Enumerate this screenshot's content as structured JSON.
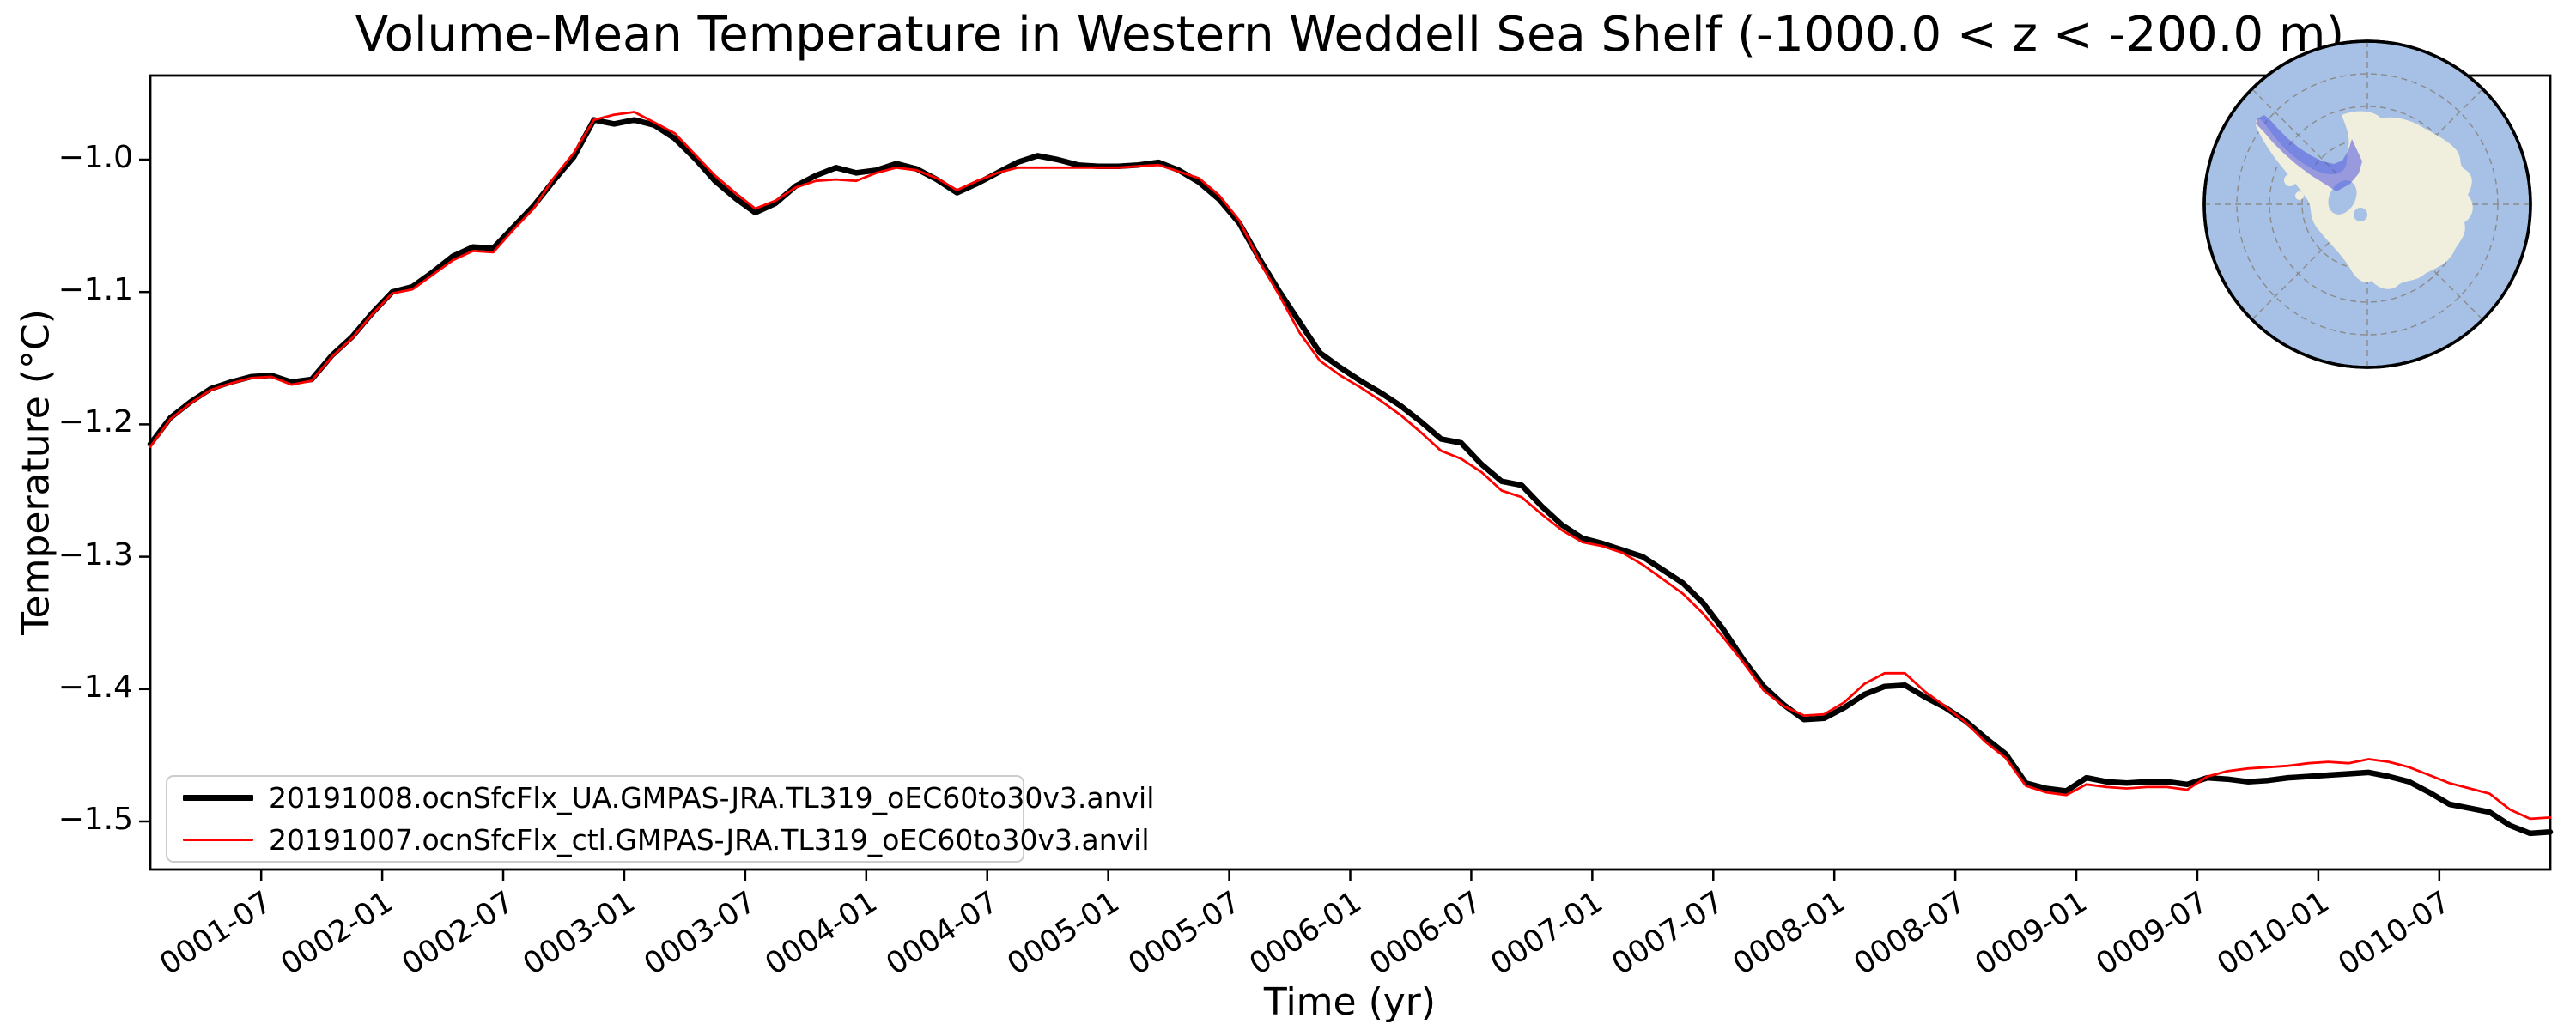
{
  "chart_data": {
    "type": "line",
    "title": "Volume-Mean Temperature in Western Weddell Sea Shelf (-1000.0 < z < -200.0 m)",
    "xlabel": "Time (yr)",
    "ylabel": "Temperature (°C)",
    "x_start": "0001-01",
    "x_end": "0010-12",
    "x_step_months": 1,
    "x_tick_labels": [
      "0001-07",
      "0002-01",
      "0002-07",
      "0003-01",
      "0003-07",
      "0004-01",
      "0004-07",
      "0005-01",
      "0005-07",
      "0006-01",
      "0006-07",
      "0007-01",
      "0007-07",
      "0008-01",
      "0008-07",
      "0009-01",
      "0009-07",
      "0010-01",
      "0010-07"
    ],
    "y_tick_labels": [
      "−1.0",
      "−1.1",
      "−1.2",
      "−1.3",
      "−1.4",
      "−1.5"
    ],
    "y_tick_values": [
      -1.0,
      -1.1,
      -1.2,
      -1.3,
      -1.4,
      -1.5
    ],
    "ylim": [
      -1.536,
      -0.936
    ],
    "grid": false,
    "legend_position": "lower left",
    "series": [
      {
        "name": "20191008.ocnSfcFlx_UA.GMPAS-JRA.TL319_oEC60to30v3.anvil",
        "color": "#000000",
        "linewidth": 6.5,
        "values": [
          -1.215,
          -1.195,
          -1.183,
          -1.173,
          -1.168,
          -1.164,
          -1.163,
          -1.168,
          -1.166,
          -1.148,
          -1.134,
          -1.116,
          -1.1,
          -1.096,
          -1.085,
          -1.073,
          -1.066,
          -1.067,
          -1.051,
          -1.035,
          -1.016,
          -0.998,
          -0.97,
          -0.973,
          -0.97,
          -0.974,
          -0.984,
          -0.999,
          -1.016,
          -1.029,
          -1.04,
          -1.033,
          -1.02,
          -1.012,
          -1.006,
          -1.01,
          -1.008,
          -1.003,
          -1.007,
          -1.015,
          -1.025,
          -1.018,
          -1.01,
          -1.002,
          -0.997,
          -1.0,
          -1.004,
          -1.005,
          -1.005,
          -1.004,
          -1.002,
          -1.008,
          -1.017,
          -1.03,
          -1.048,
          -1.075,
          -1.1,
          -1.123,
          -1.146,
          -1.157,
          -1.167,
          -1.176,
          -1.186,
          -1.198,
          -1.211,
          -1.214,
          -1.23,
          -1.243,
          -1.246,
          -1.262,
          -1.276,
          -1.286,
          -1.29,
          -1.295,
          -1.3,
          -1.31,
          -1.32,
          -1.335,
          -1.355,
          -1.378,
          -1.398,
          -1.412,
          -1.423,
          -1.422,
          -1.414,
          -1.404,
          -1.398,
          -1.397,
          -1.406,
          -1.414,
          -1.424,
          -1.437,
          -1.449,
          -1.471,
          -1.475,
          -1.477,
          -1.467,
          -1.47,
          -1.471,
          -1.47,
          -1.47,
          -1.472,
          -1.467,
          -1.468,
          -1.47,
          -1.469,
          -1.467,
          -1.466,
          -1.465,
          -1.464,
          -1.463,
          -1.466,
          -1.47,
          -1.478,
          -1.487,
          -1.49,
          -1.493,
          -1.503,
          -1.509,
          -1.508
        ]
      },
      {
        "name": "20191007.ocnSfcFlx_ctl.GMPAS-JRA.TL319_oEC60to30v3.anvil",
        "color": "#ff0000",
        "linewidth": 2.8,
        "values": [
          -1.217,
          -1.196,
          -1.184,
          -1.174,
          -1.169,
          -1.165,
          -1.164,
          -1.17,
          -1.167,
          -1.149,
          -1.135,
          -1.117,
          -1.101,
          -1.098,
          -1.087,
          -1.076,
          -1.069,
          -1.07,
          -1.053,
          -1.037,
          -1.014,
          -0.995,
          -0.97,
          -0.966,
          -0.964,
          -0.972,
          -0.98,
          -0.996,
          -1.012,
          -1.025,
          -1.037,
          -1.031,
          -1.021,
          -1.016,
          -1.015,
          -1.016,
          -1.01,
          -1.006,
          -1.008,
          -1.014,
          -1.023,
          -1.016,
          -1.01,
          -1.006,
          -1.006,
          -1.006,
          -1.006,
          -1.006,
          -1.006,
          -1.005,
          -1.004,
          -1.009,
          -1.014,
          -1.027,
          -1.046,
          -1.077,
          -1.103,
          -1.131,
          -1.152,
          -1.163,
          -1.172,
          -1.182,
          -1.193,
          -1.206,
          -1.22,
          -1.226,
          -1.236,
          -1.25,
          -1.255,
          -1.268,
          -1.28,
          -1.289,
          -1.292,
          -1.297,
          -1.306,
          -1.317,
          -1.328,
          -1.343,
          -1.361,
          -1.38,
          -1.401,
          -1.413,
          -1.42,
          -1.419,
          -1.41,
          -1.396,
          -1.388,
          -1.388,
          -1.402,
          -1.413,
          -1.425,
          -1.44,
          -1.452,
          -1.473,
          -1.478,
          -1.48,
          -1.472,
          -1.474,
          -1.475,
          -1.474,
          -1.474,
          -1.476,
          -1.466,
          -1.462,
          -1.46,
          -1.459,
          -1.458,
          -1.456,
          -1.455,
          -1.456,
          -1.453,
          -1.455,
          -1.459,
          -1.465,
          -1.471,
          -1.475,
          -1.479,
          -1.491,
          -1.498,
          -1.497
        ]
      }
    ]
  },
  "legend": {
    "items": [
      {
        "label": "20191008.ocnSfcFlx_UA.GMPAS-JRA.TL319_oEC60to30v3.anvil"
      },
      {
        "label": "20191007.ocnSfcFlx_ctl.GMPAS-JRA.TL319_oEC60to30v3.anvil"
      }
    ]
  },
  "map": {
    "description": "South polar stereographic inset of Antarctica with Western Weddell Sea Shelf region highlighted",
    "ocean_color": "#a7c0e5",
    "land_color": "#f0eedd",
    "region_fill": "#5056dd",
    "region_edge": "#2b2fd0",
    "graticule_color": "#8a8a8a",
    "outline_color": "#000000"
  }
}
